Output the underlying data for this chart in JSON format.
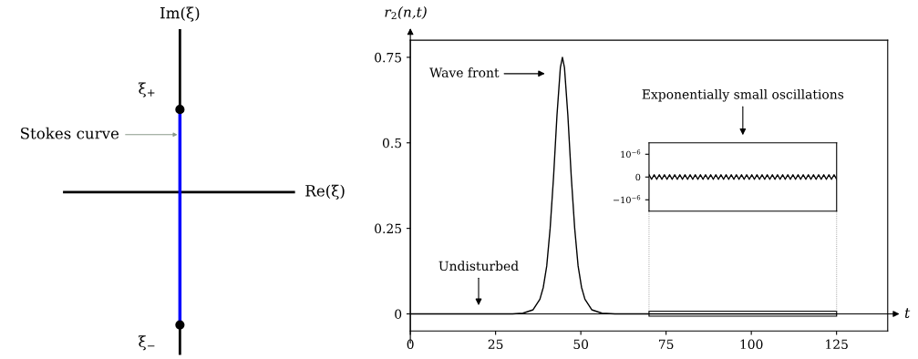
{
  "chart_data": [
    {
      "type": "other",
      "annotations": [
        "Im(ξ)",
        "Re(ξ)",
        "ξ$_{+}$",
        "ξ$_{−}$",
        "Stokes curve"
      ]
    },
    {
      "type": "line",
      "xlabel": "t",
      "ylabel": "r$_{2}$(n,t)",
      "x": [
        0,
        10,
        20,
        30,
        33,
        36,
        38,
        39,
        40,
        41,
        42,
        43,
        44,
        44.6,
        45.2,
        46.2,
        47.2,
        48.2,
        49.2,
        50.2,
        51.2,
        53.2,
        56.2,
        60,
        70,
        80,
        90,
        100,
        110,
        125
      ],
      "series": [
        {
          "color": "#000000",
          "values": [
            0,
            0,
            0,
            0,
            0.002,
            0.012,
            0.043,
            0.078,
            0.14,
            0.25,
            0.4,
            0.58,
            0.72,
            0.75,
            0.72,
            0.58,
            0.4,
            0.25,
            0.14,
            0.078,
            0.043,
            0.012,
            0.002,
            0,
            0,
            0,
            0,
            0,
            0,
            0
          ]
        }
      ],
      "xlim": [
        0,
        140
      ],
      "ylim": [
        -0.05,
        0.8
      ],
      "xticks": [
        0,
        25,
        50,
        75,
        100,
        125
      ],
      "yticks": [
        0,
        0.25,
        0.5,
        0.75
      ],
      "annotations": [
        "Wave front",
        "Undisturbed"
      ]
    },
    {
      "type": "line",
      "tick_labels": "y",
      "categories": [
        null,
        null,
        null,
        null,
        null,
        null,
        null,
        null,
        null,
        null,
        null,
        null,
        null,
        null,
        null,
        null,
        null,
        null,
        null,
        null,
        null,
        null,
        null,
        null,
        null,
        null,
        null,
        null,
        null,
        null,
        null,
        null,
        null,
        null,
        null,
        null,
        null,
        null,
        null,
        null,
        null,
        null,
        null,
        null,
        null,
        null,
        null,
        null,
        null,
        null,
        null,
        null,
        null,
        null,
        null,
        null,
        null,
        null,
        null,
        null,
        null,
        null,
        null,
        null,
        null,
        null,
        null,
        null,
        null,
        null,
        null,
        null,
        null,
        null
      ],
      "series": [
        {
          "color": "#000000",
          "values": [
            1e-07,
            -1e-07,
            1e-07,
            -1e-07,
            1e-07,
            -1e-07,
            1e-07,
            -1e-07,
            1e-07,
            -1e-07,
            1e-07,
            -1e-07,
            1e-07,
            -1e-07,
            1e-07,
            -1e-07,
            1e-07,
            -1e-07,
            1e-07,
            -1e-07,
            1e-07,
            -1e-07,
            1e-07,
            -1e-07,
            1e-07,
            -1e-07,
            1e-07,
            -1e-07,
            1e-07,
            -1e-07,
            1e-07,
            -1e-07,
            1e-07,
            -1e-07,
            1e-07,
            -1e-07,
            1e-07,
            -1e-07,
            1e-07,
            -1e-07,
            1e-07,
            -1e-07,
            1e-07,
            -1e-07,
            1e-07,
            -1e-07,
            1e-07,
            -1e-07,
            1e-07,
            -1e-07,
            1e-07,
            -1e-07,
            1e-07,
            -1e-07,
            1e-07,
            -1e-07,
            1e-07,
            -1e-07,
            1e-07,
            -1e-07,
            1e-07,
            -1e-07,
            1e-07,
            -1e-07,
            1e-07,
            -1e-07,
            1e-07,
            -1e-07,
            1e-07,
            -1e-07,
            1e-07,
            -1e-07,
            1e-07,
            -1e-07
          ]
        }
      ],
      "ylim": [
        -1.5e-06,
        1.5e-06
      ],
      "yticks": [
        {
          "value": 1e-06,
          "label": "10$^{−6}$"
        },
        0,
        {
          "value": -1e-06,
          "label": "−10$^{−6}$"
        }
      ],
      "annotations": [
        "Exponentially small oscillations"
      ]
    }
  ]
}
